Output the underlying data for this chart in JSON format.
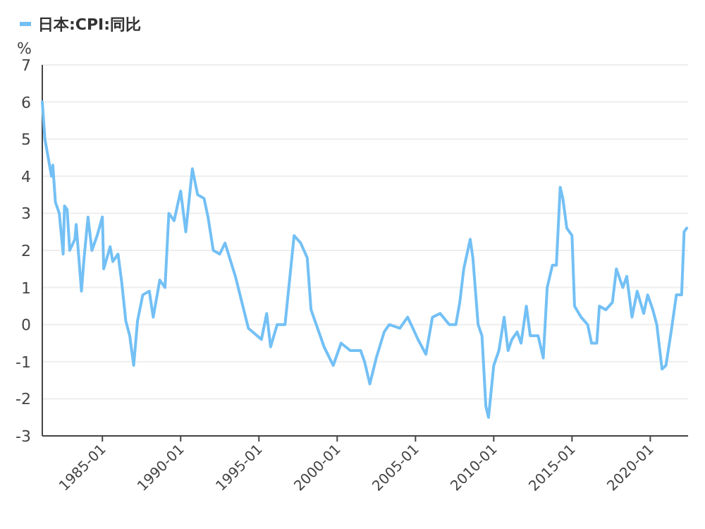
{
  "chart_data": {
    "type": "line",
    "ylabel": "%",
    "legend": "top left",
    "grid": "y",
    "marker": "none",
    "xlim": [
      "1981-03",
      "2022-06"
    ],
    "ylim": [
      -3,
      7
    ],
    "yticks": [
      -3,
      -2,
      -1,
      0,
      1,
      2,
      3,
      4,
      5,
      6,
      7
    ],
    "xticks": [
      "1985-01",
      "1990-01",
      "1995-01",
      "2000-01",
      "2005-01",
      "2010-01",
      "2015-01",
      "2020-01"
    ],
    "x": [
      "1981-03",
      "1981-05",
      "1981-08",
      "1981-10",
      "1981-11",
      "1982-01",
      "1982-04",
      "1982-07",
      "1982-08",
      "1982-10",
      "1982-12",
      "1983-04",
      "1983-05",
      "1983-09",
      "1983-11",
      "1984-02",
      "1984-05",
      "1984-09",
      "1985-01",
      "1985-02",
      "1985-07",
      "1985-09",
      "1986-01",
      "1986-04",
      "1986-07",
      "1986-10",
      "1987-01",
      "1987-04",
      "1987-08",
      "1988-01",
      "1988-04",
      "1988-09",
      "1989-01",
      "1989-04",
      "1989-08",
      "1990-01",
      "1990-05",
      "1990-10",
      "1991-02",
      "1991-07",
      "1991-10",
      "1992-02",
      "1992-07",
      "1992-11",
      "1993-07",
      "1994-05",
      "1995-03",
      "1995-07",
      "1995-10",
      "1996-03",
      "1996-09",
      "1997-04",
      "1997-09",
      "1998-02",
      "1998-05",
      "1998-10",
      "1999-03",
      "1999-10",
      "2000-04",
      "2000-11",
      "2001-07",
      "2001-10",
      "2002-02",
      "2002-07",
      "2003-01",
      "2003-05",
      "2004-01",
      "2004-07",
      "2004-11",
      "2005-03",
      "2005-09",
      "2006-02",
      "2006-08",
      "2007-03",
      "2007-08",
      "2007-11",
      "2008-02",
      "2008-07",
      "2008-09",
      "2009-01",
      "2009-04",
      "2009-07",
      "2009-09",
      "2010-01",
      "2010-05",
      "2010-09",
      "2010-12",
      "2011-03",
      "2011-07",
      "2011-10",
      "2012-02",
      "2012-05",
      "2012-11",
      "2013-03",
      "2013-06",
      "2013-10",
      "2014-01",
      "2014-04",
      "2014-06",
      "2014-09",
      "2015-01",
      "2015-03",
      "2015-08",
      "2016-01",
      "2016-04",
      "2016-08",
      "2016-10",
      "2017-03",
      "2017-08",
      "2017-11",
      "2018-04",
      "2018-07",
      "2018-11",
      "2019-03",
      "2019-08",
      "2019-11",
      "2020-03",
      "2020-06",
      "2020-10",
      "2021-01",
      "2021-05",
      "2021-09",
      "2022-01",
      "2022-03",
      "2022-05"
    ],
    "series": [
      {
        "name": "日本:CPI:同比",
        "color": "#73c0f5",
        "values": [
          6.0,
          5.0,
          4.4,
          4.0,
          4.3,
          3.3,
          3.0,
          1.9,
          3.2,
          3.1,
          2.0,
          2.3,
          2.7,
          0.9,
          1.8,
          2.9,
          2.0,
          2.4,
          2.9,
          1.5,
          2.1,
          1.7,
          1.9,
          1.1,
          0.1,
          -0.3,
          -1.1,
          0.1,
          0.8,
          0.9,
          0.2,
          1.2,
          1.0,
          3.0,
          2.8,
          3.6,
          2.5,
          4.2,
          3.5,
          3.4,
          2.9,
          2.0,
          1.9,
          2.2,
          1.3,
          -0.1,
          -0.4,
          0.3,
          -0.6,
          0.0,
          0.0,
          2.4,
          2.2,
          1.8,
          0.4,
          -0.1,
          -0.6,
          -1.1,
          -0.5,
          -0.7,
          -0.7,
          -1.0,
          -1.6,
          -0.9,
          -0.2,
          0.0,
          -0.1,
          0.2,
          -0.1,
          -0.4,
          -0.8,
          0.2,
          0.3,
          0.0,
          0.0,
          0.6,
          1.5,
          2.3,
          1.8,
          0.0,
          -0.3,
          -2.2,
          -2.5,
          -1.1,
          -0.7,
          0.2,
          -0.7,
          -0.4,
          -0.2,
          -0.5,
          0.5,
          -0.3,
          -0.3,
          -0.9,
          1.0,
          1.6,
          1.6,
          3.7,
          3.4,
          2.6,
          2.4,
          0.5,
          0.2,
          0.0,
          -0.5,
          -0.5,
          0.5,
          0.4,
          0.6,
          1.5,
          1.0,
          1.3,
          0.2,
          0.9,
          0.3,
          0.8,
          0.4,
          0.0,
          -1.2,
          -1.1,
          -0.2,
          0.8,
          0.8,
          2.5,
          2.6
        ]
      }
    ]
  }
}
